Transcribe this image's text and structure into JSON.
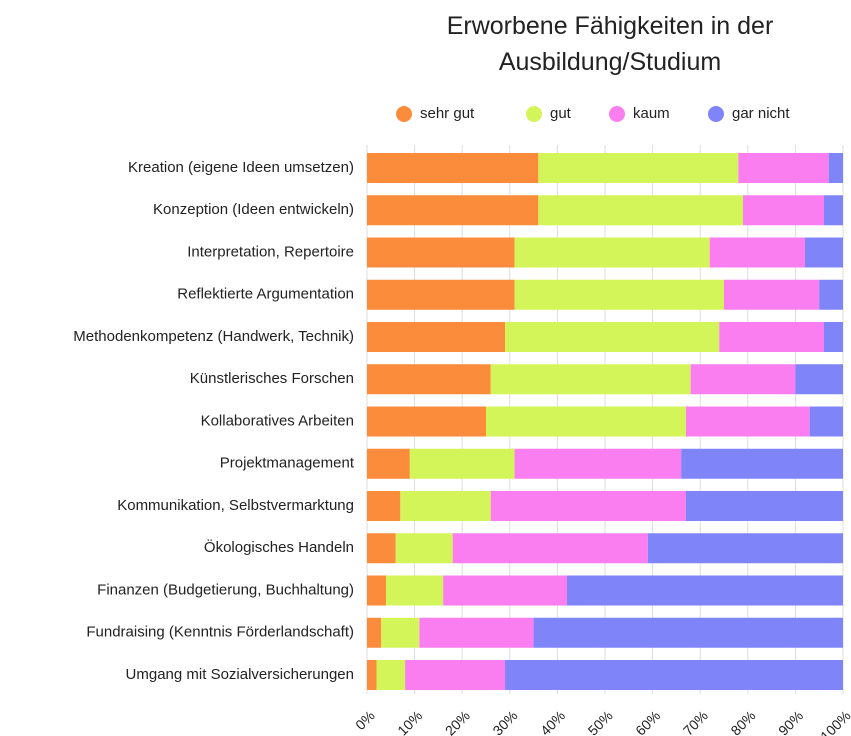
{
  "chart_data": {
    "type": "stacked-barh",
    "title": "Erworbene Fähigkeiten in der Ausbildung/Studium",
    "categories": [
      "Kreation (eigene Ideen umsetzen)",
      "Konzeption (Ideen entwickeln)",
      "Interpretation, Repertoire",
      "Reflektierte Argumentation",
      "Methodenkompetenz (Handwerk, Technik)",
      "Künstlerisches Forschen",
      "Kollaboratives Arbeiten",
      "Projektmanagement",
      "Kommunikation, Selbstvermarktung",
      "Ökologisches Handeln",
      "Finanzen (Budgetierung, Buchhaltung)",
      "Fundraising (Kenntnis Förderlandschaft)",
      "Umgang mit Sozialversicherungen"
    ],
    "series": [
      {
        "name": "sehr gut",
        "color": "#fb8c3c",
        "values": [
          36,
          36,
          31,
          31,
          29,
          26,
          25,
          9,
          7,
          6,
          4,
          3,
          2
        ]
      },
      {
        "name": "gut",
        "color": "#d4f55a",
        "values": [
          42,
          43,
          41,
          44,
          45,
          42,
          42,
          22,
          19,
          12,
          12,
          8,
          6
        ]
      },
      {
        "name": "kaum",
        "color": "#fa7ef0",
        "values": [
          19,
          17,
          20,
          20,
          22,
          22,
          26,
          35,
          41,
          41,
          26,
          24,
          21
        ]
      },
      {
        "name": "gar nicht",
        "color": "#7f85f8",
        "values": [
          3,
          4,
          8,
          5,
          4,
          10,
          7,
          34,
          33,
          41,
          58,
          65,
          71
        ]
      }
    ],
    "xlim": [
      0,
      100
    ],
    "xticks": [
      {
        "value": 0,
        "label": "0%"
      },
      {
        "value": 10,
        "label": "10%"
      },
      {
        "value": 20,
        "label": "20%"
      },
      {
        "value": 30,
        "label": "30%"
      },
      {
        "value": 40,
        "label": "40%"
      },
      {
        "value": 50,
        "label": "50%"
      },
      {
        "value": 60,
        "label": "60%"
      },
      {
        "value": 70,
        "label": "70%"
      },
      {
        "value": 80,
        "label": "80%"
      },
      {
        "value": 90,
        "label": "90%"
      },
      {
        "value": 100,
        "label": "100%"
      }
    ],
    "grid": true
  }
}
